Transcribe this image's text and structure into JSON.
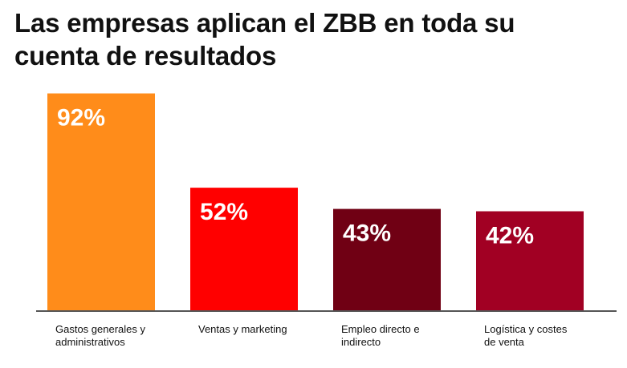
{
  "header": {
    "title_line1": "Las empresas aplican el ZBB en toda su",
    "title_line2": "cuenta de resultados"
  },
  "chart_data": {
    "type": "bar",
    "title": "Las empresas aplican el ZBB en toda su cuenta de resultados",
    "xlabel": "",
    "ylabel": "",
    "ylim": [
      0,
      100
    ],
    "grid": false,
    "categories": [
      [
        "Gastos generales y",
        "administrativos"
      ],
      [
        "Ventas y marketing"
      ],
      [
        "Empleo directo e",
        "indirecto"
      ],
      [
        "Logística y costes",
        "de venta"
      ]
    ],
    "values": [
      92,
      52,
      43,
      42
    ],
    "value_labels": [
      "92%",
      "52%",
      "43%",
      "42%"
    ],
    "colors": [
      "#ff8c1a",
      "#ff0000",
      "#700014",
      "#a10023"
    ],
    "axis_color": "#555555"
  }
}
